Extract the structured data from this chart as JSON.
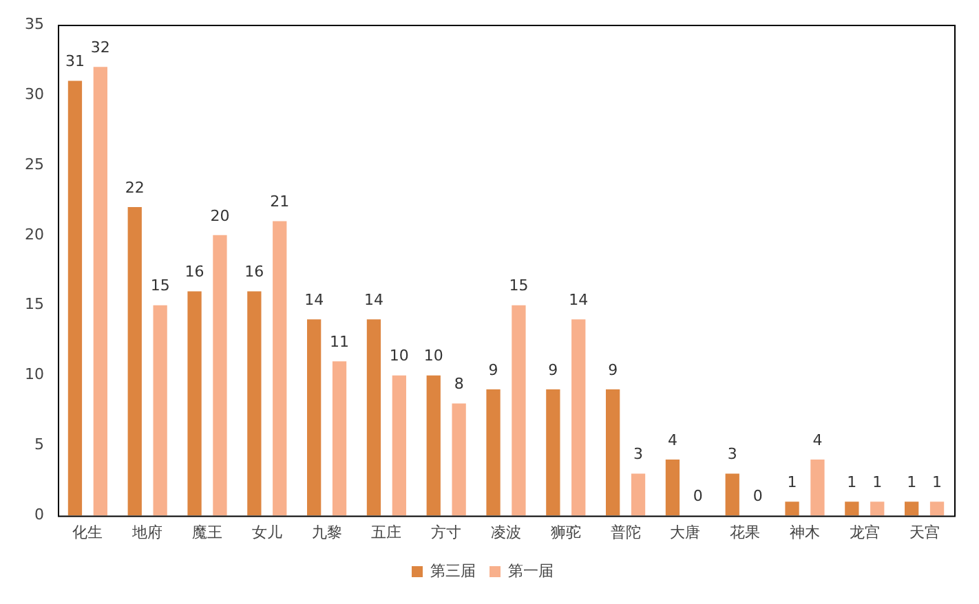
{
  "chart_data": {
    "type": "bar",
    "categories": [
      "化生",
      "地府",
      "魔王",
      "女儿",
      "九黎",
      "五庄",
      "方寸",
      "凌波",
      "狮驼",
      "普陀",
      "大唐",
      "花果",
      "神木",
      "龙宫",
      "天宫"
    ],
    "series": [
      {
        "name": "第三届",
        "color": "#dd8540",
        "values": [
          31,
          22,
          16,
          16,
          14,
          14,
          10,
          9,
          9,
          9,
          4,
          3,
          1,
          1,
          1
        ]
      },
      {
        "name": "第一届",
        "color": "#f8b08c",
        "values": [
          32,
          15,
          20,
          21,
          11,
          10,
          8,
          15,
          14,
          3,
          0,
          0,
          4,
          1,
          1
        ]
      }
    ],
    "ylim": [
      0,
      35
    ],
    "yticks": [
      0,
      5,
      10,
      15,
      20,
      25,
      30,
      35
    ],
    "grid": false,
    "legend": "bottom",
    "data_labels": true
  }
}
